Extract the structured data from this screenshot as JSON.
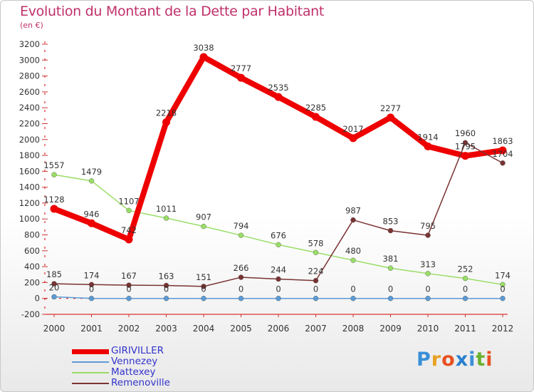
{
  "title": "Evolution du Montant de la Dette par Habitant",
  "subtitle": "(en €)",
  "logo": {
    "text": "Proxiti",
    "colors": [
      "#3a8fd8",
      "#e8a020",
      "#e85020",
      "#2a7fcf",
      "#3a8fd8",
      "#6ab030",
      "#e85020"
    ]
  },
  "chart_data": {
    "type": "line",
    "x": [
      "2000",
      "2001",
      "2002",
      "2003",
      "2004",
      "2005",
      "2006",
      "2007",
      "2008",
      "2009",
      "2010",
      "2011",
      "2012"
    ],
    "ylim": [
      -200,
      3200
    ],
    "yticks": [
      "-200",
      "0",
      "200",
      "400",
      "600",
      "800",
      "1000",
      "1200",
      "1400",
      "1600",
      "1800",
      "2000",
      "2200",
      "2400",
      "2600",
      "2800",
      "3000",
      "3200"
    ],
    "grid": false,
    "legend_position": "bottom-left",
    "series": [
      {
        "name": "GIRIVILLER",
        "color": "#ee0000",
        "width": 8,
        "values": [
          1128,
          946,
          742,
          2218,
          3038,
          2777,
          2535,
          2285,
          2017,
          2277,
          1914,
          1795,
          1863
        ],
        "labels": [
          "1128",
          "946",
          "742",
          "2218",
          "3038",
          "2777",
          "2535",
          "2285",
          "2017",
          "2277",
          "1914",
          "1795",
          "1863"
        ]
      },
      {
        "name": "Vennezey",
        "color": "#5b9bd5",
        "width": 1.5,
        "values": [
          20,
          0,
          0,
          0,
          0,
          0,
          0,
          0,
          0,
          0,
          0,
          0,
          0
        ],
        "labels": [
          "20",
          "0",
          "0",
          "0",
          "0",
          "0",
          "0",
          "0",
          "0",
          "0",
          "0",
          "0",
          "0"
        ]
      },
      {
        "name": "Mattexey",
        "color": "#99dd66",
        "width": 1.5,
        "values": [
          1557,
          1479,
          1107,
          1011,
          907,
          794,
          676,
          578,
          480,
          381,
          313,
          252,
          174
        ],
        "labels": [
          "1557",
          "1479",
          "1107",
          "1011",
          "907",
          "794",
          "676",
          "578",
          "480",
          "381",
          "313",
          "252",
          "174"
        ]
      },
      {
        "name": "Remenoville",
        "color": "#7a3333",
        "width": 1.5,
        "values": [
          185,
          174,
          167,
          163,
          151,
          266,
          244,
          224,
          987,
          853,
          795,
          1960,
          1704
        ],
        "labels": [
          "185",
          "174",
          "167",
          "163",
          "151",
          "266",
          "244",
          "224",
          "987",
          "853",
          "795",
          "1960",
          "1704"
        ]
      }
    ]
  }
}
